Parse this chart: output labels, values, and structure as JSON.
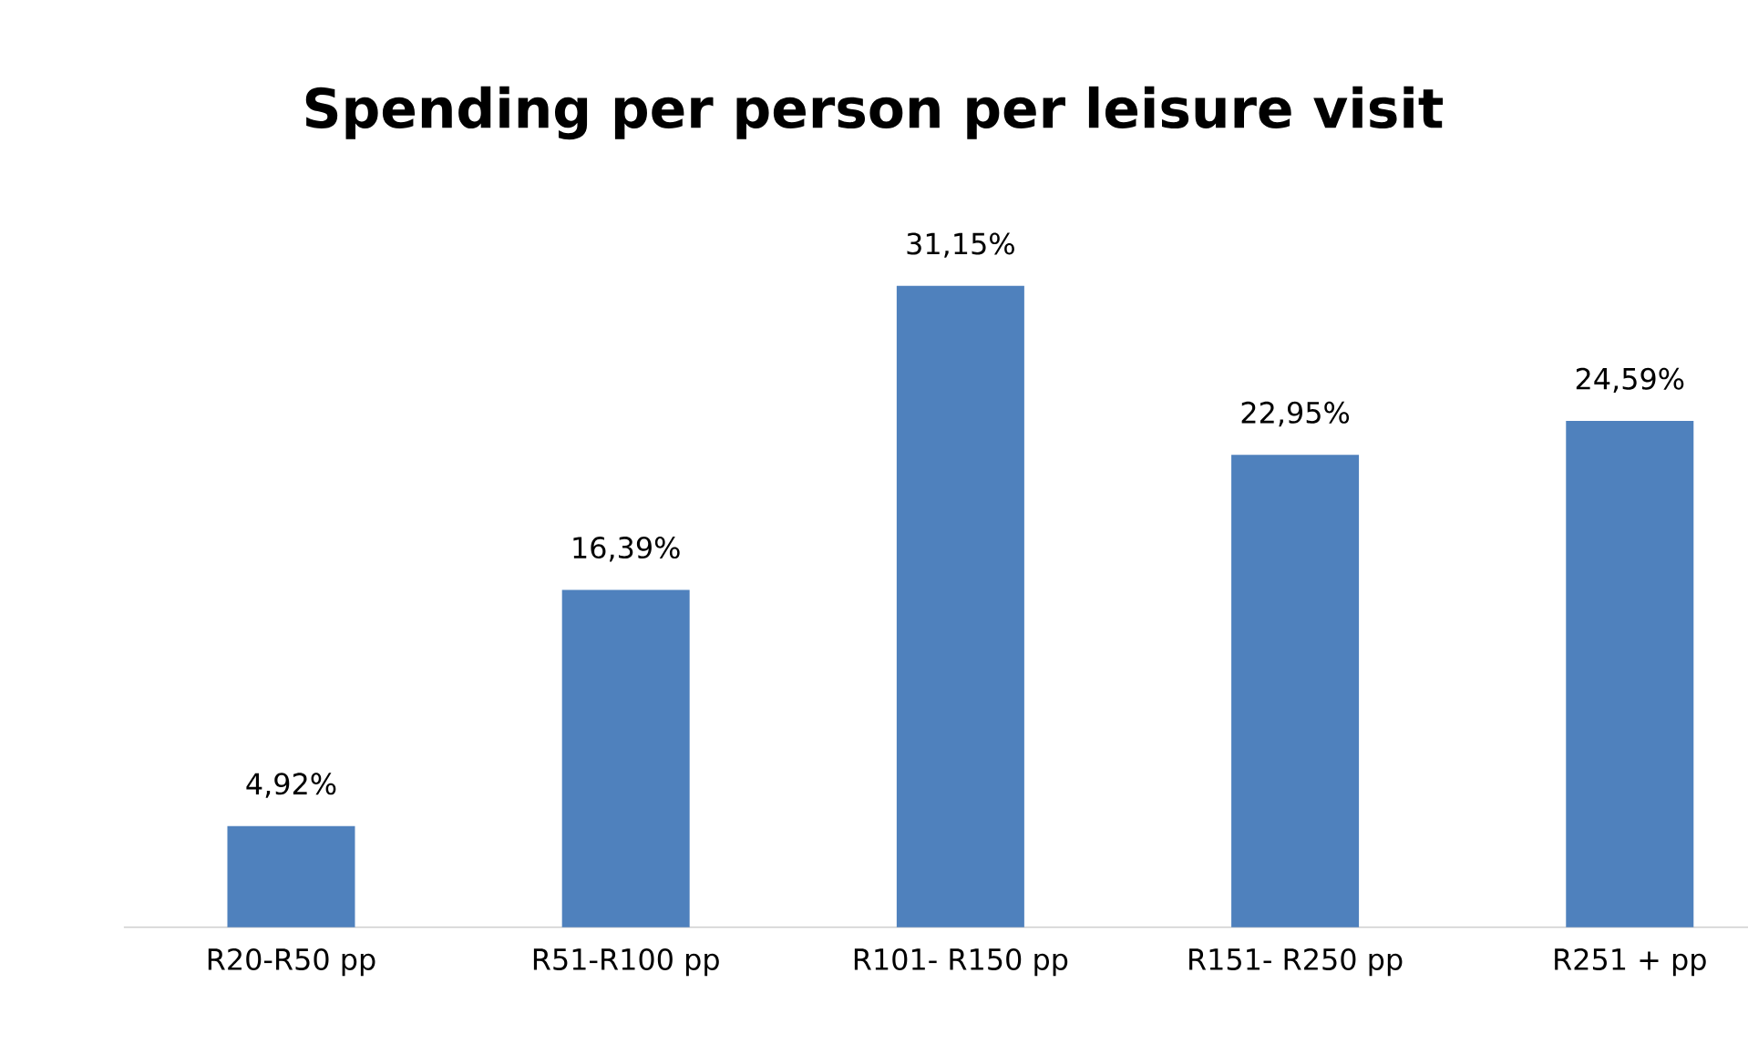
{
  "chart_data": {
    "type": "bar",
    "title": "Spending per person per leisure visit",
    "categories": [
      "R20-R50 pp",
      "R51-R100 pp",
      "R101- R150 pp",
      "R151- R250 pp",
      "R251 + pp"
    ],
    "values": [
      4.92,
      16.39,
      31.15,
      22.95,
      24.59
    ],
    "value_labels": [
      "4,92%",
      "16,39%",
      "31,15%",
      "22,95%",
      "24,59%"
    ],
    "color": "#4f81bd"
  }
}
